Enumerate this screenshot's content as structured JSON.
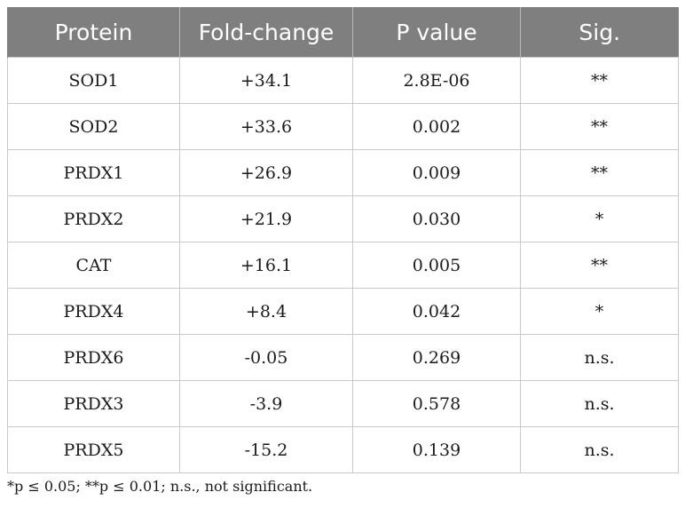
{
  "table": {
    "headers": [
      "Protein",
      "Fold-change",
      "P value",
      "Sig."
    ],
    "rows": [
      [
        "SOD1",
        "+34.1",
        "2.8E-06",
        "**"
      ],
      [
        "SOD2",
        "+33.6",
        "0.002",
        "**"
      ],
      [
        "PRDX1",
        "+26.9",
        "0.009",
        "**"
      ],
      [
        "PRDX2",
        "+21.9",
        "0.030",
        "*"
      ],
      [
        "CAT",
        "+16.1",
        "0.005",
        "**"
      ],
      [
        "PRDX4",
        "+8.4",
        "0.042",
        "*"
      ],
      [
        "PRDX6",
        "-0.05",
        "0.269",
        "n.s."
      ],
      [
        "PRDX3",
        "-3.9",
        "0.578",
        "n.s."
      ],
      [
        "PRDX5",
        "-15.2",
        "0.139",
        "n.s."
      ]
    ]
  },
  "footnote": "*p ≤ 0.05; **p ≤ 0.01; n.s., not significant.",
  "colors": {
    "header_bg": "#7f7f7f",
    "header_text": "#ffffff",
    "grid": "#c9c9c9"
  }
}
